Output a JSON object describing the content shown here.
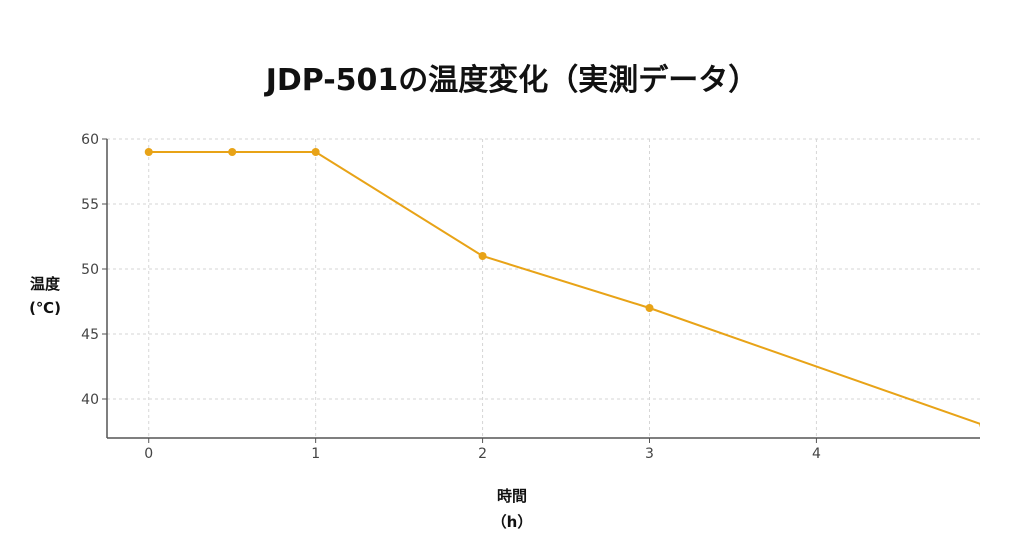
{
  "chart_data": {
    "type": "line",
    "title": "JDP-501の温度変化（実測データ）",
    "xlabel": "時間\n（h）",
    "xlabel_lines": [
      "時間",
      "（h）"
    ],
    "ylabel_lines": [
      "温度",
      "(℃)"
    ],
    "ylabel": "温度\n(℃)",
    "x": [
      0,
      0.5,
      1,
      2,
      3,
      5
    ],
    "series": [
      {
        "values": [
          59,
          59,
          59,
          51,
          47,
          38
        ],
        "color": "#E8A317",
        "marker": "circle"
      }
    ],
    "xlim": [
      -0.25,
      4.98
    ],
    "ylim": [
      37,
      60
    ],
    "xticks": [
      0,
      1,
      2,
      3,
      4
    ],
    "yticks": [
      40,
      45,
      50,
      55,
      60
    ],
    "grid": true,
    "grid_style": "dashed"
  }
}
